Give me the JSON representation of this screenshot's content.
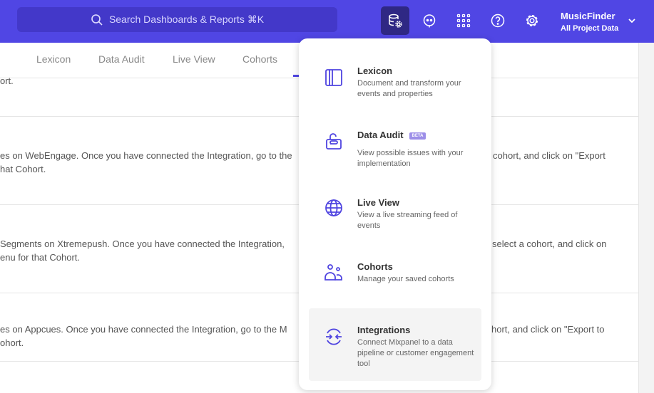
{
  "header": {
    "search_placeholder": "Search Dashboards & Reports ⌘K",
    "project_name": "MusicFinder",
    "project_scope": "All Project Data",
    "icons": [
      "data-management-icon",
      "chat-icon",
      "apps-grid-icon",
      "help-icon",
      "settings-icon"
    ]
  },
  "tabs": [
    "Lexicon",
    "Data Audit",
    "Live View",
    "Cohorts"
  ],
  "rows": [
    {
      "left": [
        "ort."
      ],
      "right": []
    },
    {
      "left": [
        "es on WebEngage. Once you have connected the Integration, go to the",
        "hat Cohort."
      ],
      "right": [
        "cohort, and click on \"Export"
      ]
    },
    {
      "left": [
        "Segments on Xtremepush. Once you have connected the Integration,",
        "enu for that Cohort."
      ],
      "right": [
        "select a cohort, and click on"
      ]
    },
    {
      "left": [
        "es on Appcues. Once you have connected the Integration, go to the M",
        "ohort."
      ],
      "right": [
        "hort, and click on \"Export to"
      ]
    }
  ],
  "menu": {
    "items": [
      {
        "title": "Lexicon",
        "desc": "Document and transform your events and properties"
      },
      {
        "title": "Data Audit",
        "badge": "BETA",
        "desc": "View possible issues with your implementation"
      },
      {
        "title": "Live View",
        "desc": "View a live streaming feed of events"
      },
      {
        "title": "Cohorts",
        "desc": "Manage your saved cohorts"
      },
      {
        "title": "Integrations",
        "desc": "Connect Mixpanel to a data pipeline or customer engagement tool",
        "highlighted": true
      }
    ]
  },
  "colors": {
    "brand": "#5046e4",
    "icon": "#4f44e0"
  }
}
